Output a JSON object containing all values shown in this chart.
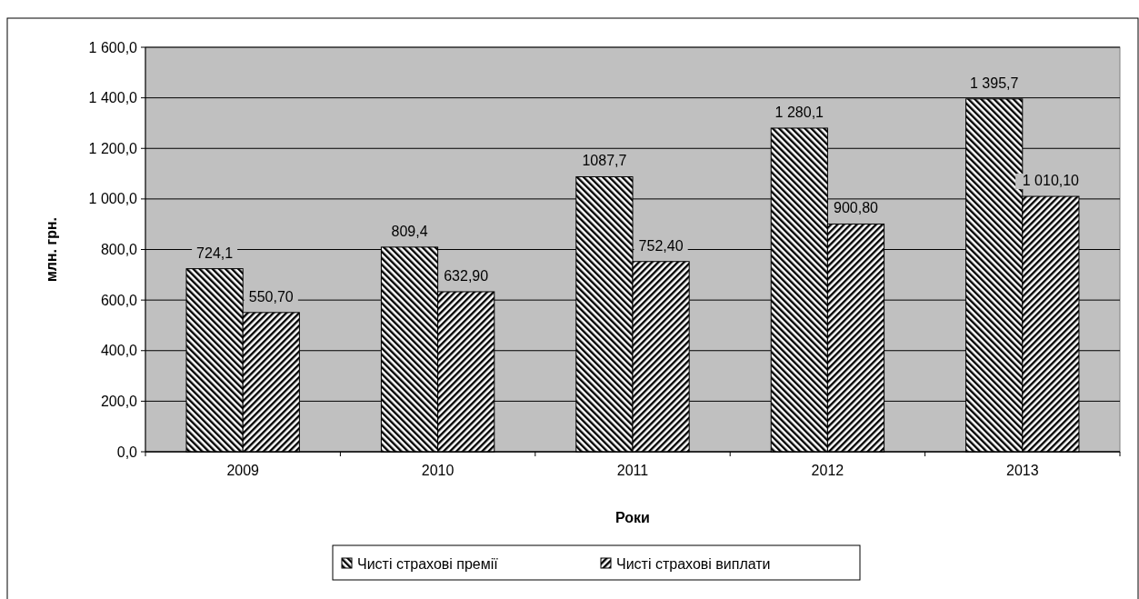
{
  "chart_data": {
    "type": "bar",
    "xlabel": "Роки",
    "ylabel": "млн. грн.",
    "categories": [
      "2009",
      "2010",
      "2011",
      "2012",
      "2013"
    ],
    "series": [
      {
        "name": "Чисті страхові премії",
        "color": "#000000",
        "values": [
          724.1,
          809.4,
          1087.7,
          1280.1,
          1395.7
        ],
        "value_labels": [
          "724,1",
          "809,4",
          "1087,7",
          "1 280,1",
          "1 395,7"
        ]
      },
      {
        "name": "Чисті страхові виплати",
        "color": "#000000",
        "values": [
          550.7,
          632.9,
          752.4,
          900.8,
          1010.1
        ],
        "value_labels": [
          "550,70",
          "632,90",
          "752,40",
          "900,80",
          "1 010,10"
        ]
      }
    ],
    "ylim": [
      0,
      1600
    ],
    "yticks": [
      {
        "value": 0,
        "label": "0,0"
      },
      {
        "value": 200,
        "label": "200,0"
      },
      {
        "value": 400,
        "label": "400,0"
      },
      {
        "value": 600,
        "label": "600,0"
      },
      {
        "value": 800,
        "label": "800,0"
      },
      {
        "value": 1000,
        "label": "1 000,0"
      },
      {
        "value": 1200,
        "label": "1 200,0"
      },
      {
        "value": 1400,
        "label": "1 400,0"
      },
      {
        "value": 1600,
        "label": "1 600,0"
      }
    ],
    "grid": "y",
    "legend": "bottom"
  }
}
